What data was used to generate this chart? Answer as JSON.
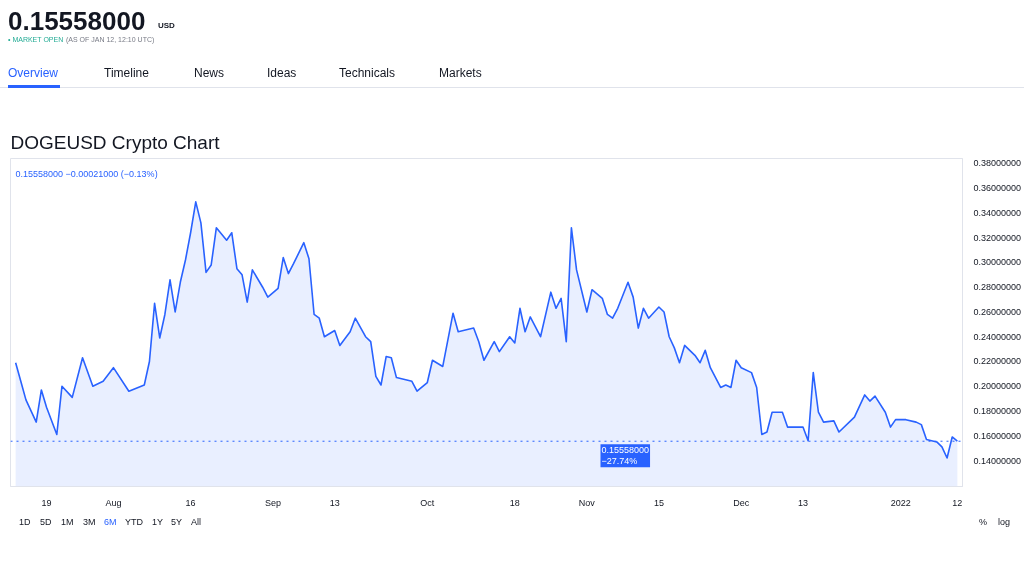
{
  "chart_data": {
    "type": "area",
    "title": "DOGEUSD Crypto Chart",
    "annotations": [
      "0.15558000",
      "USD",
      "• MARKET OPEN",
      "(AS OF JAN 12, 12:10 UTC)",
      "Overview",
      "Timeline",
      "News",
      "Ideas",
      "Technicals",
      "Markets",
      "0.15558000 −0.00021000 (−0.13%)",
      "1D",
      "5D",
      "1M",
      "3M",
      "6M",
      "YTD",
      "1Y",
      "5Y",
      "All",
      "%",
      "log"
    ],
    "x": [
      "2021-07-13",
      "2021-07-14",
      "2021-07-15",
      "2021-07-17",
      "2021-07-18",
      "2021-07-19",
      "2021-07-21",
      "2021-07-22",
      "2021-07-24",
      "2021-07-26",
      "2021-07-28",
      "2021-07-30",
      "2021-08-01",
      "2021-08-04",
      "2021-08-07",
      "2021-08-08",
      "2021-08-09",
      "2021-08-10",
      "2021-08-11",
      "2021-08-12",
      "2021-08-13",
      "2021-08-14",
      "2021-08-15",
      "2021-08-16",
      "2021-08-17",
      "2021-08-18",
      "2021-08-19",
      "2021-08-20",
      "2021-08-21",
      "2021-08-23",
      "2021-08-24",
      "2021-08-25",
      "2021-08-26",
      "2021-08-27",
      "2021-08-28",
      "2021-08-30",
      "2021-08-31",
      "2021-09-02",
      "2021-09-03",
      "2021-09-04",
      "2021-09-05",
      "2021-09-07",
      "2021-09-08",
      "2021-09-09",
      "2021-09-10",
      "2021-09-11",
      "2021-09-13",
      "2021-09-14",
      "2021-09-16",
      "2021-09-17",
      "2021-09-19",
      "2021-09-20",
      "2021-09-21",
      "2021-09-22",
      "2021-09-23",
      "2021-09-24",
      "2021-09-25",
      "2021-09-28",
      "2021-09-29",
      "2021-10-01",
      "2021-10-02",
      "2021-10-04",
      "2021-10-06",
      "2021-10-07",
      "2021-10-10",
      "2021-10-11",
      "2021-10-12",
      "2021-10-14",
      "2021-10-15",
      "2021-10-17",
      "2021-10-18",
      "2021-10-19",
      "2021-10-20",
      "2021-10-21",
      "2021-10-23",
      "2021-10-25",
      "2021-10-26",
      "2021-10-27",
      "2021-10-28",
      "2021-10-29",
      "2021-10-30",
      "2021-11-01",
      "2021-11-02",
      "2021-11-04",
      "2021-11-05",
      "2021-11-06",
      "2021-11-07",
      "2021-11-09",
      "2021-11-10",
      "2021-11-11",
      "2021-11-12",
      "2021-11-13",
      "2021-11-15",
      "2021-11-16",
      "2021-11-17",
      "2021-11-18",
      "2021-11-19",
      "2021-11-20",
      "2021-11-22",
      "2021-11-23",
      "2021-11-24",
      "2021-11-25",
      "2021-11-27",
      "2021-11-28",
      "2021-11-29",
      "2021-11-30",
      "2021-12-01",
      "2021-12-03",
      "2021-12-04",
      "2021-12-05",
      "2021-12-06",
      "2021-12-07",
      "2021-12-09",
      "2021-12-10",
      "2021-12-12",
      "2021-12-13",
      "2021-12-14",
      "2021-12-15",
      "2021-12-16",
      "2021-12-17",
      "2021-12-19",
      "2021-12-20",
      "2021-12-23",
      "2021-12-25",
      "2021-12-26",
      "2021-12-27",
      "2021-12-29",
      "2021-12-30",
      "2021-12-31",
      "2022-01-02",
      "2022-01-04",
      "2022-01-05",
      "2022-01-06",
      "2022-01-08",
      "2022-01-09",
      "2022-01-10",
      "2022-01-11",
      "2022-01-12"
    ],
    "series": [
      {
        "color": "#2962ff",
        "values": [
          0.219,
          0.204,
          0.189,
          0.171,
          0.197,
          0.183,
          0.161,
          0.2,
          0.191,
          0.223,
          0.2,
          0.204,
          0.215,
          0.196,
          0.201,
          0.22,
          0.267,
          0.239,
          0.258,
          0.286,
          0.26,
          0.284,
          0.302,
          0.324,
          0.349,
          0.332,
          0.292,
          0.298,
          0.328,
          0.318,
          0.324,
          0.295,
          0.29,
          0.268,
          0.294,
          0.28,
          0.272,
          0.279,
          0.304,
          0.291,
          0.299,
          0.316,
          0.303,
          0.258,
          0.255,
          0.24,
          0.245,
          0.233,
          0.244,
          0.255,
          0.24,
          0.236,
          0.208,
          0.201,
          0.224,
          0.223,
          0.207,
          0.204,
          0.196,
          0.203,
          0.221,
          0.216,
          0.259,
          0.244,
          0.247,
          0.236,
          0.221,
          0.236,
          0.228,
          0.24,
          0.235,
          0.263,
          0.244,
          0.256,
          0.24,
          0.276,
          0.263,
          0.271,
          0.236,
          0.328,
          0.294,
          0.26,
          0.278,
          0.271,
          0.258,
          0.255,
          0.263,
          0.284,
          0.272,
          0.247,
          0.263,
          0.255,
          0.264,
          0.26,
          0.24,
          0.231,
          0.219,
          0.233,
          0.225,
          0.219,
          0.229,
          0.215,
          0.199,
          0.201,
          0.199,
          0.221,
          0.215,
          0.211,
          0.199,
          0.161,
          0.163,
          0.179,
          0.179,
          0.167,
          0.167,
          0.167,
          0.156,
          0.211,
          0.179,
          0.171,
          0.172,
          0.163,
          0.175,
          0.193,
          0.188,
          0.192,
          0.179,
          0.167,
          0.173,
          0.173,
          0.171,
          0.169,
          0.157,
          0.155,
          0.151,
          0.142,
          0.159,
          0.15558
        ]
      }
    ],
    "xlim": [
      "2021-07-12",
      "2022-01-13"
    ],
    "xticks": [
      {
        "value": "2021-07-19",
        "label": "19"
      },
      {
        "value": "2021-08-01",
        "label": "Aug"
      },
      {
        "value": "2021-08-16",
        "label": "16"
      },
      {
        "value": "2021-09-01",
        "label": "Sep"
      },
      {
        "value": "2021-09-13",
        "label": "13"
      },
      {
        "value": "2021-10-01",
        "label": "Oct"
      },
      {
        "value": "2021-10-18",
        "label": "18"
      },
      {
        "value": "2021-11-01",
        "label": "Nov"
      },
      {
        "value": "2021-11-15",
        "label": "15"
      },
      {
        "value": "2021-12-01",
        "label": "Dec"
      },
      {
        "value": "2021-12-13",
        "label": "13"
      },
      {
        "value": "2022-01-01",
        "label": "2022"
      },
      {
        "value": "2022-01-12",
        "label": "12"
      }
    ],
    "ylim": [
      0.119,
      0.384
    ],
    "yticks": [
      {
        "value": 0.14,
        "label": "0.14000000"
      },
      {
        "value": 0.16,
        "label": "0.16000000"
      },
      {
        "value": 0.18,
        "label": "0.18000000"
      },
      {
        "value": 0.2,
        "label": "0.20000000"
      },
      {
        "value": 0.22,
        "label": "0.22000000"
      },
      {
        "value": 0.24,
        "label": "0.24000000"
      },
      {
        "value": 0.26,
        "label": "0.26000000"
      },
      {
        "value": 0.28,
        "label": "0.28000000"
      },
      {
        "value": 0.3,
        "label": "0.30000000"
      },
      {
        "value": 0.32,
        "label": "0.32000000"
      },
      {
        "value": 0.34,
        "label": "0.34000000"
      },
      {
        "value": 0.36,
        "label": "0.36000000"
      },
      {
        "value": 0.38,
        "label": "0.38000000"
      }
    ],
    "ref_lines": [
      {
        "axis": "y",
        "value": 0.15558,
        "label": "0.15558000\n−27.74%",
        "color": "#2962ff",
        "line_style": "dotted"
      }
    ],
    "grid": false
  }
}
